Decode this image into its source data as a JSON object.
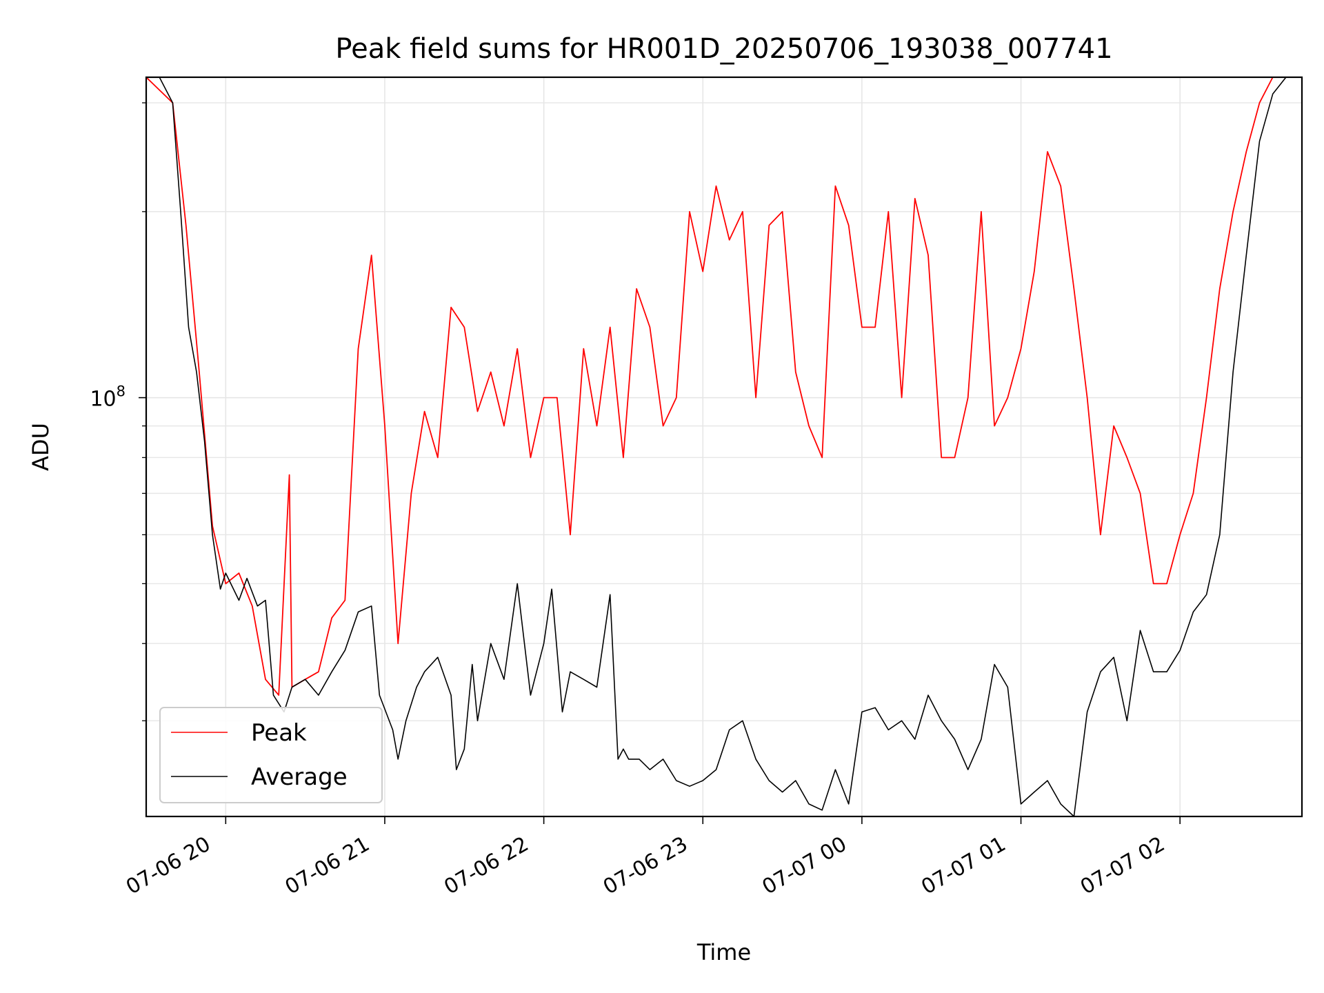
{
  "chart_data": {
    "type": "line",
    "title": "Peak field sums for HR001D_20250706_193038_007741",
    "xlabel": "Time",
    "ylabel": "ADU",
    "yscale": "log",
    "ylim": [
      21000000,
      330000000
    ],
    "y_ticks": [
      {
        "value": 100000000,
        "base": "10",
        "exp": "8"
      }
    ],
    "y_minor_ticks": [
      30000000,
      40000000,
      50000000,
      60000000,
      70000000,
      80000000,
      90000000,
      200000000,
      300000000
    ],
    "x_tick_labels": [
      "07-06 20",
      "07-06 21",
      "07-06 22",
      "07-06 23",
      "07-07 00",
      "07-07 01",
      "07-07 02"
    ],
    "xlim": [
      "2025-07-06 19:30",
      "2025-07-07 02:46"
    ],
    "x_ticks": [
      "2025-07-06 20:00",
      "2025-07-06 21:00",
      "2025-07-06 22:00",
      "2025-07-06 23:00",
      "2025-07-07 00:00",
      "2025-07-07 01:00",
      "2025-07-07 02:00"
    ],
    "grid": true,
    "legend_position": "lower-left",
    "series": [
      {
        "name": "Peak",
        "color": "#ff0000",
        "x": [
          "2025-07-06 19:30",
          "2025-07-06 19:40",
          "2025-07-06 19:45",
          "2025-07-06 19:50",
          "2025-07-06 19:55",
          "2025-07-06 20:00",
          "2025-07-06 20:05",
          "2025-07-06 20:10",
          "2025-07-06 20:15",
          "2025-07-06 20:20",
          "2025-07-06 20:24",
          "2025-07-06 20:25",
          "2025-07-06 20:30",
          "2025-07-06 20:35",
          "2025-07-06 20:40",
          "2025-07-06 20:45",
          "2025-07-06 20:50",
          "2025-07-06 20:55",
          "2025-07-06 21:00",
          "2025-07-06 21:05",
          "2025-07-06 21:10",
          "2025-07-06 21:15",
          "2025-07-06 21:20",
          "2025-07-06 21:25",
          "2025-07-06 21:30",
          "2025-07-06 21:35",
          "2025-07-06 21:40",
          "2025-07-06 21:45",
          "2025-07-06 21:50",
          "2025-07-06 21:55",
          "2025-07-06 22:00",
          "2025-07-06 22:05",
          "2025-07-06 22:10",
          "2025-07-06 22:15",
          "2025-07-06 22:20",
          "2025-07-06 22:25",
          "2025-07-06 22:30",
          "2025-07-06 22:35",
          "2025-07-06 22:40",
          "2025-07-06 22:45",
          "2025-07-06 22:50",
          "2025-07-06 22:55",
          "2025-07-06 23:00",
          "2025-07-06 23:05",
          "2025-07-06 23:10",
          "2025-07-06 23:15",
          "2025-07-06 23:20",
          "2025-07-06 23:25",
          "2025-07-06 23:30",
          "2025-07-06 23:35",
          "2025-07-06 23:40",
          "2025-07-06 23:45",
          "2025-07-06 23:50",
          "2025-07-06 23:55",
          "2025-07-07 00:00",
          "2025-07-07 00:05",
          "2025-07-07 00:10",
          "2025-07-07 00:15",
          "2025-07-07 00:20",
          "2025-07-07 00:25",
          "2025-07-07 00:30",
          "2025-07-07 00:35",
          "2025-07-07 00:40",
          "2025-07-07 00:45",
          "2025-07-07 00:50",
          "2025-07-07 00:55",
          "2025-07-07 01:00",
          "2025-07-07 01:05",
          "2025-07-07 01:10",
          "2025-07-07 01:15",
          "2025-07-07 01:20",
          "2025-07-07 01:25",
          "2025-07-07 01:30",
          "2025-07-07 01:35",
          "2025-07-07 01:40",
          "2025-07-07 01:45",
          "2025-07-07 01:50",
          "2025-07-07 01:55",
          "2025-07-07 02:00",
          "2025-07-07 02:05",
          "2025-07-07 02:10",
          "2025-07-07 02:15",
          "2025-07-07 02:20",
          "2025-07-07 02:25",
          "2025-07-07 02:30",
          "2025-07-07 02:35",
          "2025-07-07 02:40",
          "2025-07-07 02:46"
        ],
        "y": [
          330000000,
          300000000,
          190000000,
          110000000,
          62000000,
          50000000,
          52000000,
          46000000,
          35000000,
          33000000,
          75000000,
          34000000,
          35000000,
          36000000,
          44000000,
          47000000,
          120000000,
          170000000,
          90000000,
          40000000,
          70000000,
          95000000,
          80000000,
          140000000,
          130000000,
          95000000,
          110000000,
          90000000,
          120000000,
          80000000,
          100000000,
          100000000,
          60000000,
          120000000,
          90000000,
          130000000,
          80000000,
          150000000,
          130000000,
          90000000,
          100000000,
          200000000,
          160000000,
          220000000,
          180000000,
          200000000,
          100000000,
          190000000,
          200000000,
          110000000,
          90000000,
          80000000,
          220000000,
          190000000,
          130000000,
          130000000,
          200000000,
          100000000,
          210000000,
          170000000,
          80000000,
          80000000,
          100000000,
          200000000,
          90000000,
          100000000,
          120000000,
          160000000,
          250000000,
          220000000,
          150000000,
          100000000,
          60000000,
          90000000,
          80000000,
          70000000,
          50000000,
          50000000,
          60000000,
          70000000,
          100000000,
          150000000,
          200000000,
          250000000,
          300000000,
          330000000,
          330000000,
          330000000
        ]
      },
      {
        "name": "Average",
        "color": "#000000",
        "x": [
          "2025-07-06 19:30",
          "2025-07-06 19:35",
          "2025-07-06 19:40",
          "2025-07-06 19:43",
          "2025-07-06 19:46",
          "2025-07-06 19:49",
          "2025-07-06 19:52",
          "2025-07-06 19:55",
          "2025-07-06 19:58",
          "2025-07-06 20:00",
          "2025-07-06 20:05",
          "2025-07-06 20:08",
          "2025-07-06 20:12",
          "2025-07-06 20:15",
          "2025-07-06 20:18",
          "2025-07-06 20:22",
          "2025-07-06 20:25",
          "2025-07-06 20:30",
          "2025-07-06 20:35",
          "2025-07-06 20:40",
          "2025-07-06 20:45",
          "2025-07-06 20:50",
          "2025-07-06 20:55",
          "2025-07-06 20:58",
          "2025-07-06 21:03",
          "2025-07-06 21:05",
          "2025-07-06 21:08",
          "2025-07-06 21:12",
          "2025-07-06 21:15",
          "2025-07-06 21:20",
          "2025-07-06 21:25",
          "2025-07-06 21:27",
          "2025-07-06 21:30",
          "2025-07-06 21:33",
          "2025-07-06 21:35",
          "2025-07-06 21:40",
          "2025-07-06 21:45",
          "2025-07-06 21:50",
          "2025-07-06 21:55",
          "2025-07-06 22:00",
          "2025-07-06 22:03",
          "2025-07-06 22:07",
          "2025-07-06 22:10",
          "2025-07-06 22:15",
          "2025-07-06 22:20",
          "2025-07-06 22:25",
          "2025-07-06 22:28",
          "2025-07-06 22:30",
          "2025-07-06 22:32",
          "2025-07-06 22:36",
          "2025-07-06 22:40",
          "2025-07-06 22:45",
          "2025-07-06 22:50",
          "2025-07-06 22:55",
          "2025-07-06 23:00",
          "2025-07-06 23:05",
          "2025-07-06 23:10",
          "2025-07-06 23:15",
          "2025-07-06 23:20",
          "2025-07-06 23:25",
          "2025-07-06 23:30",
          "2025-07-06 23:35",
          "2025-07-06 23:40",
          "2025-07-06 23:45",
          "2025-07-06 23:50",
          "2025-07-06 23:55",
          "2025-07-07 00:00",
          "2025-07-07 00:05",
          "2025-07-07 00:10",
          "2025-07-07 00:15",
          "2025-07-07 00:20",
          "2025-07-07 00:25",
          "2025-07-07 00:30",
          "2025-07-07 00:35",
          "2025-07-07 00:40",
          "2025-07-07 00:45",
          "2025-07-07 00:50",
          "2025-07-07 00:55",
          "2025-07-07 01:00",
          "2025-07-07 01:05",
          "2025-07-07 01:10",
          "2025-07-07 01:15",
          "2025-07-07 01:20",
          "2025-07-07 01:25",
          "2025-07-07 01:30",
          "2025-07-07 01:35",
          "2025-07-07 01:40",
          "2025-07-07 01:45",
          "2025-07-07 01:50",
          "2025-07-07 01:55",
          "2025-07-07 02:00",
          "2025-07-07 02:05",
          "2025-07-07 02:10",
          "2025-07-07 02:15",
          "2025-07-07 02:20",
          "2025-07-07 02:25",
          "2025-07-07 02:30",
          "2025-07-07 02:35",
          "2025-07-07 02:40",
          "2025-07-07 02:46"
        ],
        "y": [
          330000000,
          330000000,
          300000000,
          200000000,
          130000000,
          110000000,
          85000000,
          60000000,
          49000000,
          52000000,
          47000000,
          51000000,
          46000000,
          47000000,
          33000000,
          31000000,
          34000000,
          35000000,
          33000000,
          36000000,
          39000000,
          45000000,
          46000000,
          33000000,
          29000000,
          26000000,
          30000000,
          34000000,
          36000000,
          38000000,
          33000000,
          25000000,
          27000000,
          37000000,
          30000000,
          40000000,
          35000000,
          50000000,
          33000000,
          40000000,
          49000000,
          31000000,
          36000000,
          35000000,
          34000000,
          48000000,
          26000000,
          27000000,
          26000000,
          26000000,
          25000000,
          26000000,
          24000000,
          23500000,
          24000000,
          25000000,
          29000000,
          30000000,
          26000000,
          24000000,
          23000000,
          24000000,
          22000000,
          21500000,
          25000000,
          22000000,
          31000000,
          31500000,
          29000000,
          30000000,
          28000000,
          33000000,
          30000000,
          28000000,
          25000000,
          28000000,
          37000000,
          34000000,
          22000000,
          23000000,
          24000000,
          22000000,
          21000000,
          31000000,
          36000000,
          38000000,
          30000000,
          42000000,
          36000000,
          36000000,
          39000000,
          45000000,
          48000000,
          60000000,
          110000000,
          170000000,
          260000000,
          310000000,
          330000000,
          330000000
        ]
      }
    ]
  }
}
